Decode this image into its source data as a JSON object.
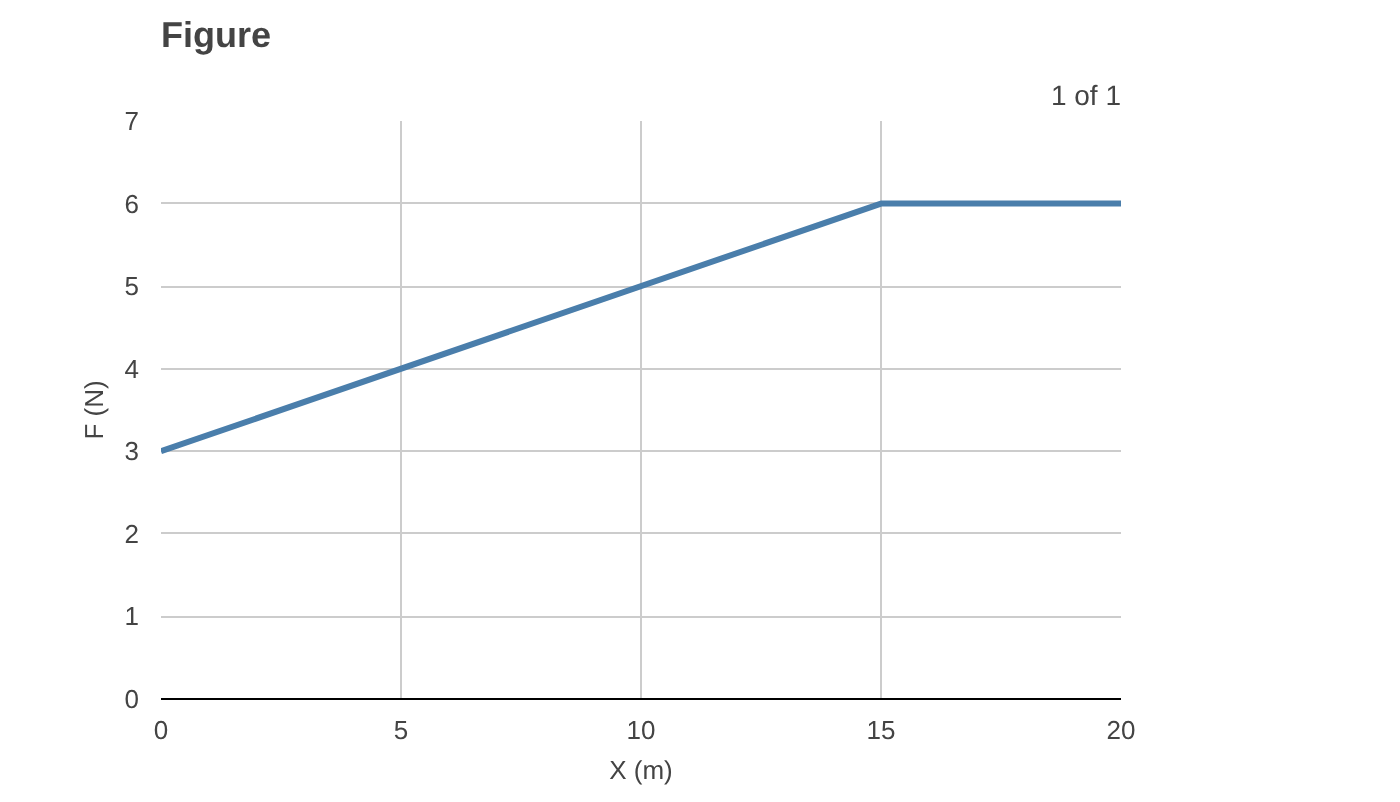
{
  "chart_data": {
    "type": "line",
    "title": "Figure",
    "annotations": [
      "1 of 1"
    ],
    "xlabel": "X (m)",
    "ylabel": "F (N)",
    "x": [
      0,
      15,
      20
    ],
    "series": [
      {
        "color": "#4a7eab",
        "values": [
          3,
          6,
          6
        ]
      }
    ],
    "xlim": [
      0,
      20
    ],
    "ylim": [
      0,
      7
    ],
    "xticks": [
      0,
      5,
      10,
      15,
      20
    ],
    "yticks": [
      0,
      1,
      2,
      3,
      4,
      5,
      6,
      7
    ],
    "grid": true,
    "marker": "none",
    "line_style": "solid"
  }
}
